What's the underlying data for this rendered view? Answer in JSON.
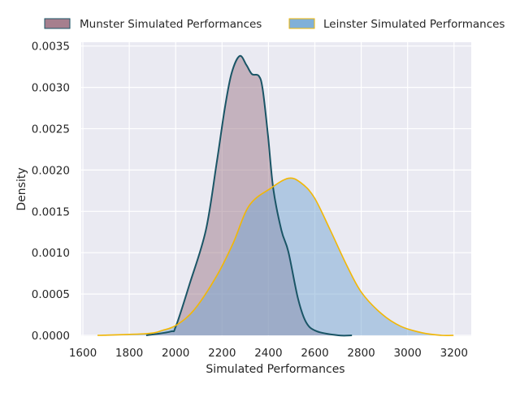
{
  "chart_data": {
    "type": "area",
    "title": "",
    "xlabel": "Simulated Performances",
    "ylabel": "Density",
    "xlim": [
      1590,
      3270
    ],
    "ylim": [
      0,
      0.0035
    ],
    "xticks": [
      1600,
      1800,
      2000,
      2200,
      2400,
      2600,
      2800,
      3000,
      3200
    ],
    "xtick_labels": [
      "1600",
      "1800",
      "2000",
      "2200",
      "2400",
      "2600",
      "2800",
      "3000",
      "3200"
    ],
    "yticks": [
      0,
      0.0005,
      0.001,
      0.0015,
      0.002,
      0.0025,
      0.003,
      0.0035
    ],
    "ytick_labels": [
      "0.0000",
      "0.0005",
      "0.0010",
      "0.0015",
      "0.0020",
      "0.0025",
      "0.0030",
      "0.0035"
    ],
    "grid": true,
    "legend_placement": "top-center-outside",
    "series": [
      {
        "name": "Munster Simulated Performances",
        "fill": "#9e7a8a",
        "edge": "#1a5566",
        "legend_fill": "#a67f8e",
        "x": [
          1873,
          1978,
          2001,
          2060,
          2130,
          2177,
          2212,
          2241,
          2276,
          2305,
          2329,
          2358,
          2375,
          2398,
          2421,
          2456,
          2486,
          2527,
          2562,
          2608,
          2702,
          2760
        ],
        "y": [
          0,
          4.6e-05,
          0.00011,
          0.00062,
          0.00127,
          0.00209,
          0.00275,
          0.00317,
          0.00338,
          0.00327,
          0.00316,
          0.00314,
          0.00298,
          0.00242,
          0.00177,
          0.00127,
          0.00101,
          0.00045,
          0.00016,
          5e-05,
          0,
          0
        ]
      },
      {
        "name": "Leinster Simulated Performances",
        "fill": "#76a6d2",
        "edge": "#f2b705",
        "legend_fill": "#80b0d8",
        "x": [
          1663,
          1873,
          1943,
          2007,
          2083,
          2177,
          2247,
          2317,
          2410,
          2486,
          2538,
          2597,
          2667,
          2737,
          2801,
          2888,
          2970,
          3064,
          3146,
          3198
        ],
        "y": [
          0,
          2e-05,
          6e-05,
          0.00013,
          0.00032,
          0.00072,
          0.00111,
          0.00157,
          0.00178,
          0.0019,
          0.00185,
          0.00167,
          0.00127,
          0.00085,
          0.00052,
          0.00026,
          0.00011,
          3e-05,
          0,
          0
        ]
      }
    ]
  }
}
